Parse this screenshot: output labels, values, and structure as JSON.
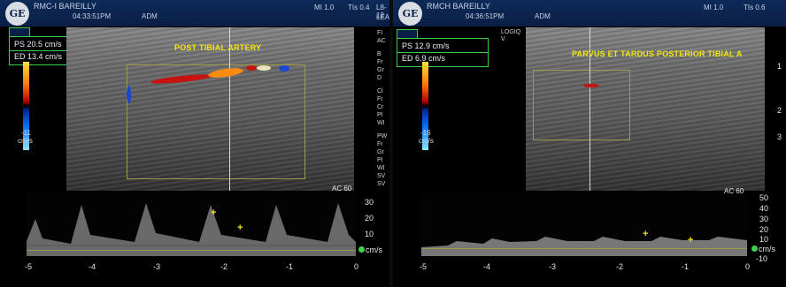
{
  "left": {
    "hospital": "RMC-I BAREILLY",
    "time": "04:33:51PM",
    "user": "ADM",
    "mi_text": "MI 1.0",
    "tis_text": "TIs 0.4",
    "probe_text": "L8-12",
    "lea_text": "LEA",
    "ps": "PS 20.5 cm/s",
    "ed": "ED 13.4 cm/s",
    "scale_bottom": "-11",
    "scale_unit": "cm/s",
    "annotation": "POST TIBIAL ARTERY",
    "ac_label": "AC 60",
    "y_ticks": [
      "30",
      "20",
      "10"
    ],
    "velocity_unit": "cm/s",
    "x_ticks": [
      "-5",
      "-4",
      "-3",
      "-2",
      "-1",
      "0"
    ],
    "side_menu": [
      "FI",
      "AC",
      "B",
      "Fr",
      "Gr",
      "D",
      "Cl",
      "Fr",
      "Cr",
      "PI",
      "WI",
      "PW",
      "Fr",
      "Gr",
      "PI",
      "WI",
      "SV",
      "SV"
    ]
  },
  "right": {
    "hospital": "RMCH BAREILLY",
    "time": "04:36:51PM",
    "user": "ADM",
    "mi_text": "MI 1.0",
    "tis_text": "TIs 0.6",
    "logo_text": "LOGIQ V",
    "ps": "PS 12.9 cm/s",
    "ed": "ED 6.9 cm/s",
    "scale_bottom": "-16",
    "scale_unit": "cm/s",
    "annotation": "PARVUS ET TARDUS POSTERIOR TIBIAL A",
    "ac_label": "AC 60",
    "y_ticks": [
      "50",
      "40",
      "30",
      "20",
      "10",
      "-10"
    ],
    "velocity_unit": "cm/s",
    "x_ticks": [
      "-5",
      "-4",
      "-3",
      "-2",
      "-1",
      "0"
    ],
    "depth_ticks": [
      "1",
      "2",
      "3"
    ]
  }
}
